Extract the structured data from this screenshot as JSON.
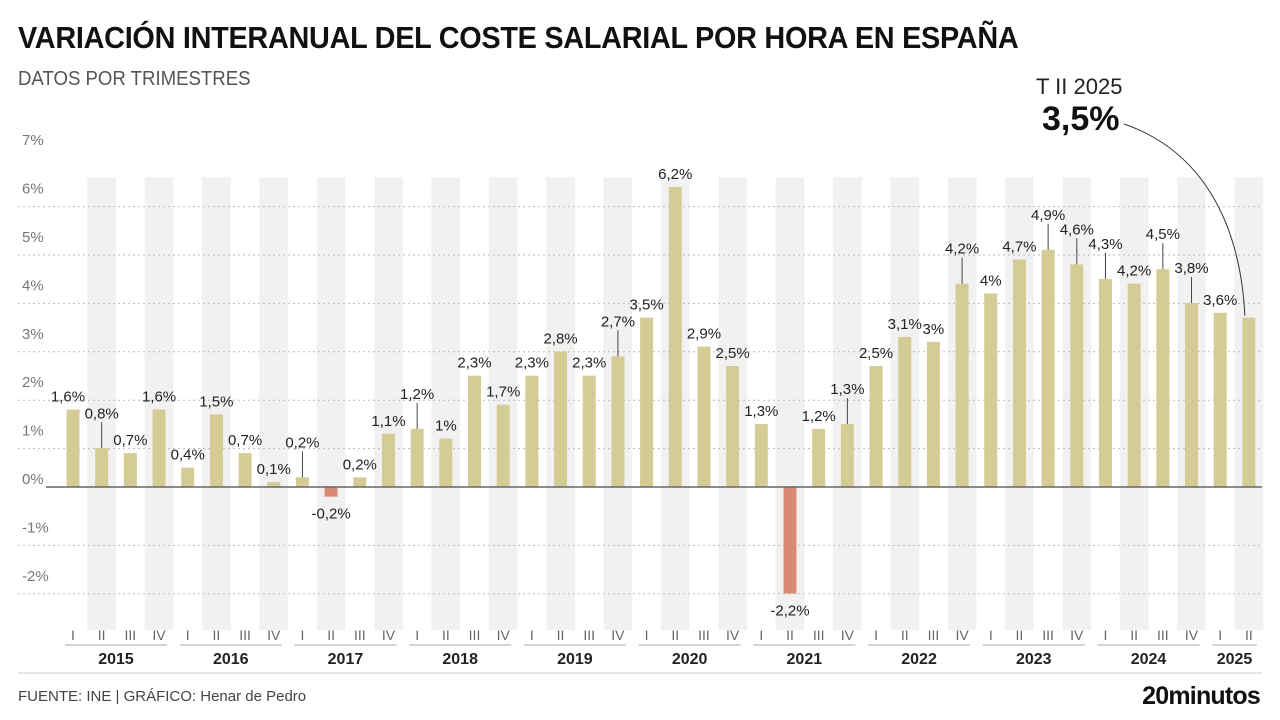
{
  "header": {
    "title": "VARIACIÓN INTERANUAL DEL COSTE SALARIAL POR HORA EN ESPAÑA",
    "subtitle": "DATOS POR TRIMESTRES"
  },
  "callout": {
    "label": "T II 2025",
    "value": "3,5%"
  },
  "footer": {
    "source": "FUENTE: INE  |  GRÁFICO: Henar de Pedro",
    "logo": "20minutos"
  },
  "colors": {
    "positive": "#d4cc94",
    "negative": "#d98a74",
    "stripe": "#f1f1f1",
    "grid": "#bbbbbb"
  },
  "chart_data": {
    "type": "bar",
    "title": "VARIACIÓN INTERANUAL DEL COSTE SALARIAL POR HORA EN ESPAÑA",
    "subtitle": "DATOS POR TRIMESTRES",
    "xlabel": "",
    "ylabel": "",
    "ylim": [
      -2.5,
      7
    ],
    "yticks": [
      -2,
      -1,
      0,
      1,
      2,
      3,
      4,
      5,
      6,
      7
    ],
    "ytick_labels": [
      "-2%",
      "-1%",
      "0%",
      "1%",
      "2%",
      "3%",
      "4%",
      "5%",
      "6%",
      "7%"
    ],
    "grid": true,
    "quarter_labels": [
      "I",
      "II",
      "III",
      "IV"
    ],
    "years": [
      "2015",
      "2016",
      "2017",
      "2018",
      "2019",
      "2020",
      "2021",
      "2022",
      "2023",
      "2024",
      "2025"
    ],
    "categories": [
      "2015 I",
      "2015 II",
      "2015 III",
      "2015 IV",
      "2016 I",
      "2016 II",
      "2016 III",
      "2016 IV",
      "2017 I",
      "2017 II",
      "2017 III",
      "2017 IV",
      "2018 I",
      "2018 II",
      "2018 III",
      "2018 IV",
      "2019 I",
      "2019 II",
      "2019 III",
      "2019 IV",
      "2020 I",
      "2020 II",
      "2020 III",
      "2020 IV",
      "2021 I",
      "2021 II",
      "2021 III",
      "2021 IV",
      "2022 I",
      "2022 II",
      "2022 III",
      "2022 IV",
      "2023 I",
      "2023 II",
      "2023 III",
      "2023 IV",
      "2024 I",
      "2024 II",
      "2024 III",
      "2024 IV",
      "2025 I",
      "2025 II"
    ],
    "values": [
      1.6,
      0.8,
      0.7,
      1.6,
      0.4,
      1.5,
      0.7,
      0.1,
      0.2,
      -0.2,
      0.2,
      1.1,
      1.2,
      1.0,
      2.3,
      1.7,
      2.3,
      2.8,
      2.3,
      2.7,
      3.5,
      6.2,
      2.9,
      2.5,
      1.3,
      -2.2,
      1.2,
      1.3,
      2.5,
      3.1,
      3.0,
      4.2,
      4.0,
      4.7,
      4.9,
      4.6,
      4.3,
      4.2,
      4.5,
      3.8,
      3.6,
      3.5
    ],
    "data_labels": [
      "1,6%",
      "0,8%",
      "0,7%",
      "1,6%",
      "0,4%",
      "1,5%",
      "0,7%",
      "0,1%",
      "0,2%",
      "-0,2%",
      "0,2%",
      "1,1%",
      "1,2%",
      "1%",
      "2,3%",
      "1,7%",
      "2,3%",
      "2,8%",
      "2,3%",
      "2,7%",
      "3,5%",
      "6,2%",
      "2,9%",
      "2,5%",
      "1,3%",
      "-2,2%",
      "1,2%",
      "1,3%",
      "2,5%",
      "3,1%",
      "3%",
      "4,2%",
      "4%",
      "4,7%",
      "4,9%",
      "4,6%",
      "4,3%",
      "4,2%",
      "4,5%",
      "3,8%",
      "3,6%",
      ""
    ],
    "annotation": {
      "text": "T II 2025 3,5%",
      "target": "2025 II"
    }
  }
}
